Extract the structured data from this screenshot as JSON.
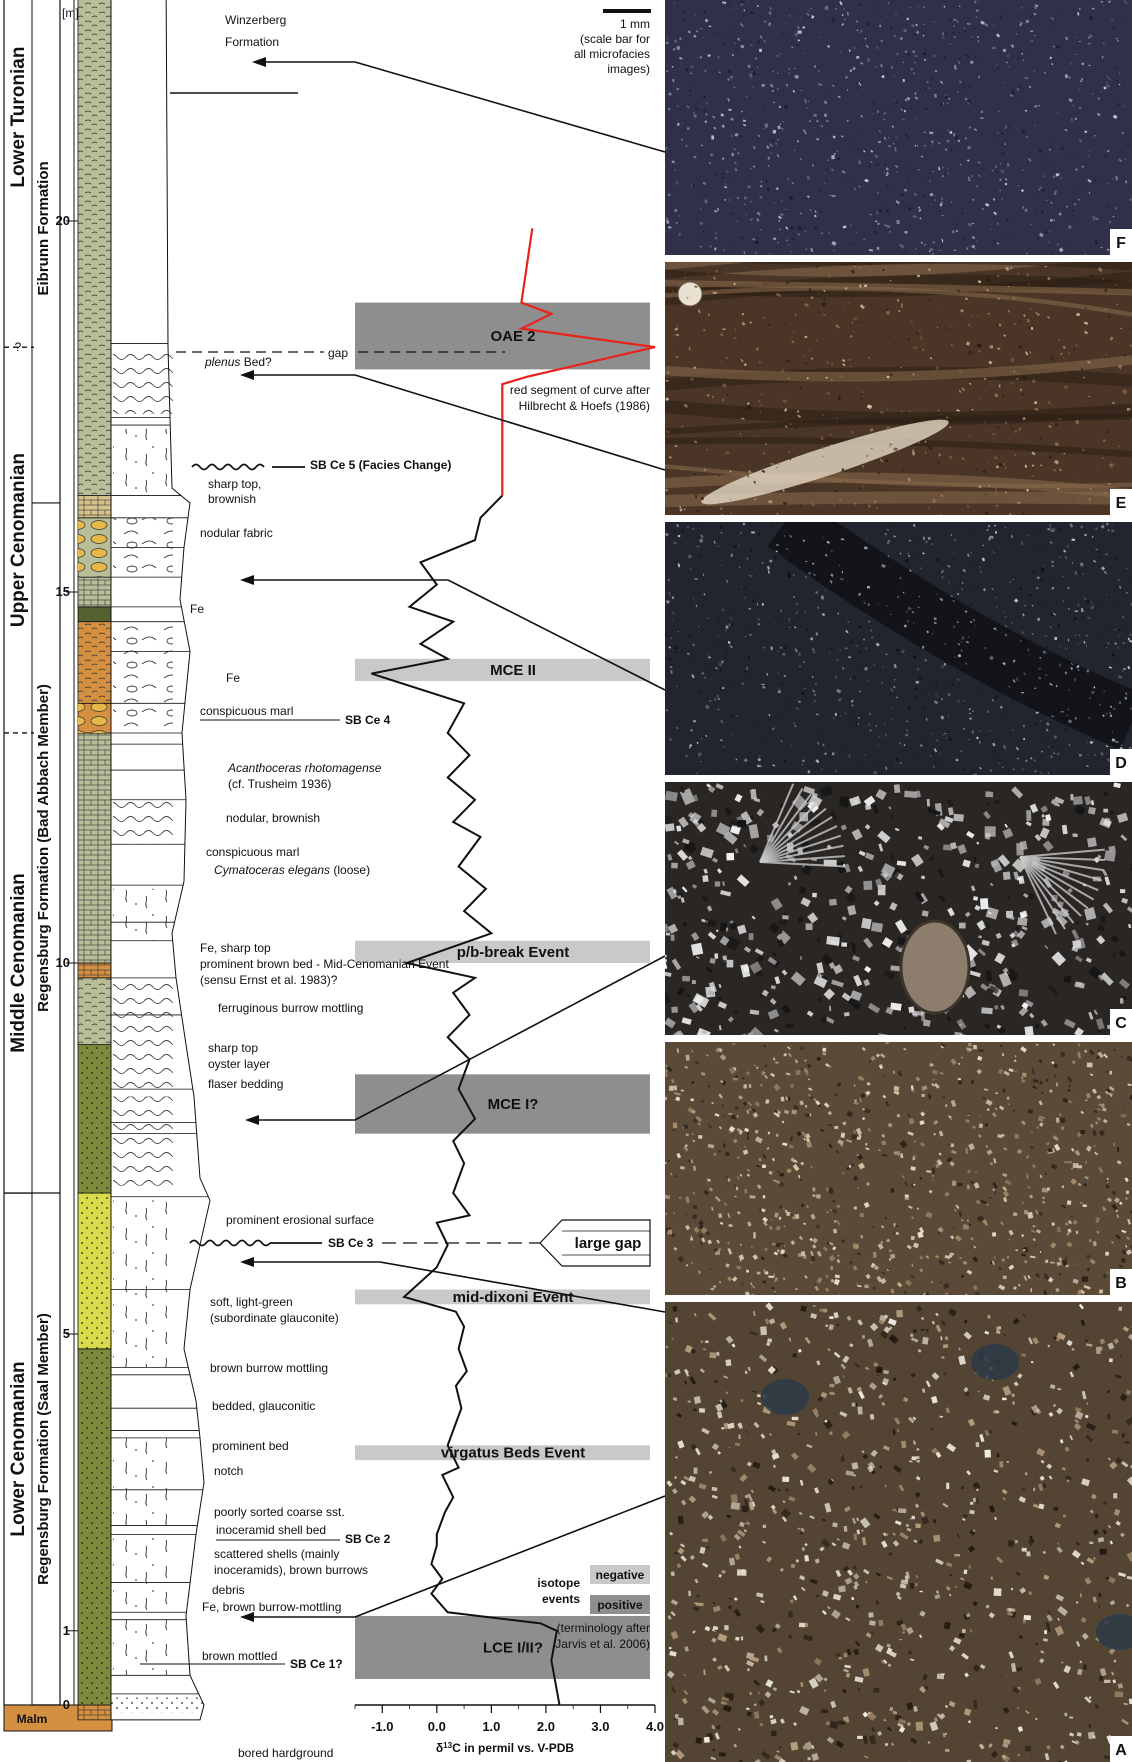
{
  "column": {
    "meter_unit": "[m]",
    "meter_ticks": [
      {
        "label": "0",
        "m": 0
      },
      {
        "label": "1",
        "m": 1
      },
      {
        "label": "5",
        "m": 5
      },
      {
        "label": "10",
        "m": 10
      },
      {
        "label": "15",
        "m": 15
      },
      {
        "label": "20",
        "m": 20
      }
    ],
    "stages": [
      {
        "label": "Malm",
        "from": -0.2,
        "to": 0
      },
      {
        "label": "Lower Cenomanian",
        "from": 0,
        "to": 6.9
      },
      {
        "label": "Middle Cenomanian",
        "from": 6.9,
        "to": 13.1
      },
      {
        "label": "Upper Cenomanian",
        "from": 13.1,
        "to": 18.3
      },
      {
        "label": "Lower Turonian",
        "from": 18.3,
        "to": 24.5
      }
    ],
    "boundary_query": "?",
    "formations": [
      {
        "label": "Regensburg Formation (Saal Member)",
        "from": 0,
        "to": 6.9
      },
      {
        "label": "Regensburg Formation (Bad Abbach Member)",
        "from": 6.9,
        "to": 16.2
      },
      {
        "label": "Eibrunn Formation",
        "from": 16.2,
        "to": 23.6
      },
      {
        "label": "Winzer. Fm",
        "from": 23.6,
        "to": 24.5
      }
    ]
  },
  "annotations": {
    "winzerberg_1": "Winzerberg",
    "winzerberg_2": "Formation",
    "gap": "gap",
    "plenus_it": "plenus",
    "plenus_rest": " Bed?",
    "sb_ce5": "SB Ce 5 (Facies Change)",
    "sharp_top_1": "sharp top,",
    "sharp_top_2": "brownish",
    "nodular_fabric": "nodular fabric",
    "fe_1": "Fe",
    "fe_2": "Fe",
    "conspicuous_marl_1": "conspicuous marl",
    "sb_ce4": "SB Ce 4",
    "acanthoceras": "Acanthoceras rhotomagense",
    "trusheim": "(cf. Trusheim 1936)",
    "nodular_brownish": "nodular, brownish",
    "conspicuous_marl_2": "conspicuous marl",
    "cymatoceras_it": "Cymatoceras elegans",
    "cymatoceras_rest": " (loose)",
    "fe_sharp_top": "Fe, sharp top",
    "prominent_brown": "prominent brown bed - Mid-Cenomanian Event",
    "sensu_ernst": "(sensu Ernst et al. 1983)?",
    "ferruginous": "ferruginous burrow mottling",
    "sharp_top_3": "sharp top",
    "oyster_layer": "oyster layer",
    "flaser": "flaser bedding",
    "erosional": "prominent erosional surface",
    "sb_ce3": "SB Ce 3",
    "soft_green_1": "soft, light-green",
    "soft_green_2": "(subordinate glauconite)",
    "brown_burrow": "brown burrow mottling",
    "bedded_glauc": "bedded, glauconitic",
    "prominent_bed": "prominent bed",
    "notch": "notch",
    "poorly_sorted": "poorly sorted coarse sst.",
    "inoceramid_shell": "inoceramid shell bed",
    "sb_ce2": "SB Ce 2",
    "scattered_1": "scattered shells (mainly",
    "scattered_2": "inoceramids), brown burrows",
    "debris": "debris",
    "fe_brown_mottling": "Fe, brown burrow-mottling",
    "brown_mottled": "brown mottled",
    "sb_ce1": "SB Ce 1?",
    "bored_hardground": "bored hardground"
  },
  "isotope_plot": {
    "type": "line",
    "x_ticks": [
      "-1.0",
      "0.0",
      "1.0",
      "2.0",
      "3.0",
      "4.0"
    ],
    "x_range": [
      -1.5,
      4.0
    ],
    "xlabel_pre": "δ",
    "xlabel_sup": "13",
    "xlabel_post": "C in permil vs. V-PDB",
    "curve_black": [
      [
        2.25,
        0.0
      ],
      [
        2.1,
        0.6
      ],
      [
        2.2,
        1.0
      ],
      [
        1.9,
        1.1
      ],
      [
        0.2,
        1.25
      ],
      [
        -0.1,
        1.5
      ],
      [
        0.1,
        1.7
      ],
      [
        -0.1,
        1.9
      ],
      [
        0.0,
        2.15
      ],
      [
        0.0,
        2.3
      ],
      [
        0.15,
        2.6
      ],
      [
        0.3,
        2.8
      ],
      [
        0.1,
        3.1
      ],
      [
        0.4,
        3.2
      ],
      [
        0.2,
        3.5
      ],
      [
        0.35,
        3.8
      ],
      [
        0.45,
        4.0
      ],
      [
        0.35,
        4.3
      ],
      [
        0.55,
        4.5
      ],
      [
        0.4,
        4.8
      ],
      [
        0.5,
        5.1
      ],
      [
        0.35,
        5.3
      ],
      [
        -0.6,
        5.5
      ],
      [
        0.0,
        5.9
      ],
      [
        0.2,
        6.2
      ],
      [
        0.0,
        6.5
      ],
      [
        0.6,
        6.6
      ],
      [
        0.3,
        6.9
      ],
      [
        0.5,
        7.3
      ],
      [
        0.3,
        7.6
      ],
      [
        0.7,
        7.9
      ],
      [
        0.4,
        8.3
      ],
      [
        0.6,
        8.7
      ],
      [
        0.2,
        9.0
      ],
      [
        0.6,
        9.3
      ],
      [
        0.3,
        9.6
      ],
      [
        0.7,
        9.8
      ],
      [
        -0.55,
        10.0
      ],
      [
        1.0,
        10.4
      ],
      [
        0.5,
        10.7
      ],
      [
        0.9,
        11.0
      ],
      [
        0.4,
        11.3
      ],
      [
        0.8,
        11.7
      ],
      [
        0.3,
        11.9
      ],
      [
        0.7,
        12.2
      ],
      [
        0.2,
        12.5
      ],
      [
        0.6,
        12.8
      ],
      [
        0.2,
        13.1
      ],
      [
        0.5,
        13.5
      ],
      [
        -1.2,
        13.9
      ],
      [
        0.2,
        14.1
      ],
      [
        -0.3,
        14.3
      ],
      [
        0.3,
        14.6
      ],
      [
        -0.5,
        14.8
      ],
      [
        0.0,
        15.1
      ],
      [
        -0.3,
        15.4
      ],
      [
        0.7,
        15.7
      ],
      [
        0.8,
        16.0
      ],
      [
        1.2,
        16.3
      ]
    ],
    "curve_red": [
      [
        1.2,
        16.3
      ],
      [
        1.2,
        17.8
      ],
      [
        1.65,
        17.9
      ],
      [
        4.0,
        18.3
      ],
      [
        1.55,
        18.55
      ],
      [
        2.1,
        18.75
      ],
      [
        1.55,
        18.9
      ],
      [
        1.75,
        19.9
      ]
    ],
    "curve_note_1": "red segment of curve after",
    "curve_note_2": "Hilbrecht & Hoefs (1986)",
    "large_gap": "large gap",
    "events": [
      {
        "label": "LCE I/II?",
        "kind": "positive",
        "from": 0.35,
        "to": 1.2
      },
      {
        "label": "virgatus Beds Event",
        "kind": "negative",
        "from": 3.3,
        "to": 3.5
      },
      {
        "label": "mid-dixoni Event",
        "kind": "negative",
        "from": 5.4,
        "to": 5.6
      },
      {
        "label": "MCE I?",
        "kind": "positive",
        "from": 7.7,
        "to": 8.5
      },
      {
        "label": "p/b-break Event",
        "kind": "negative",
        "from": 10.0,
        "to": 10.3
      },
      {
        "label": "MCE II",
        "kind": "negative",
        "from": 13.8,
        "to": 14.1
      },
      {
        "label": "OAE 2",
        "kind": "positive",
        "from": 18.0,
        "to": 18.9
      }
    ],
    "legend": {
      "title_1": "isotope",
      "title_2": "events",
      "negative": "negative",
      "positive": "positive",
      "note_1": "(terminology after",
      "note_2": "Jarvis et al. 2006)"
    }
  },
  "microfacies": {
    "scale_bar_label": "1 mm",
    "scale_note_1": "(scale bar for",
    "scale_note_2": "all microfacies",
    "scale_note_3": "images)",
    "panels": [
      {
        "letter": "F",
        "style": "dark-fine",
        "base": "#2e3148"
      },
      {
        "letter": "E",
        "style": "brown-laminated",
        "base": "#4a3526"
      },
      {
        "letter": "D",
        "style": "dark-patchy",
        "base": "#23252e"
      },
      {
        "letter": "C",
        "style": "bioclastic",
        "base": "#2a2624"
      },
      {
        "letter": "B",
        "style": "brown-granular",
        "base": "#5b4a38"
      },
      {
        "letter": "A",
        "style": "coarse-granular",
        "base": "#544434"
      }
    ]
  },
  "colors": {
    "sandstone_green": "#7c8a3b",
    "glauconite_yellow": "#d8dc4a",
    "marl_sage": "#b8be98",
    "ferruginous_orange": "#d49040",
    "event_dark": "#8e8e8e",
    "event_light": "#c9c9c9",
    "curve_red": "#e8231c"
  }
}
